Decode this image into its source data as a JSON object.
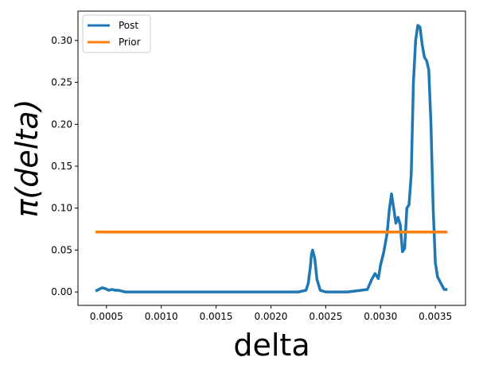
{
  "chart_data": {
    "type": "line",
    "xlabel": "delta",
    "ylabel": "π(delta)",
    "xlim": [
      0.00024,
      0.003775
    ],
    "ylim": [
      -0.016,
      0.335
    ],
    "x_ticks": [
      0.0005,
      0.001,
      0.0015,
      0.002,
      0.0025,
      0.003,
      0.0035
    ],
    "x_tick_labels": [
      "0.0005",
      "0.0010",
      "0.0015",
      "0.0020",
      "0.0025",
      "0.0030",
      "0.0035"
    ],
    "y_ticks": [
      0.0,
      0.05,
      0.1,
      0.15,
      0.2,
      0.25,
      0.3
    ],
    "y_tick_labels": [
      "0.00",
      "0.05",
      "0.10",
      "0.15",
      "0.20",
      "0.25",
      "0.30"
    ],
    "grid": false,
    "legend_position": "top-left",
    "series": [
      {
        "name": "Post",
        "color": "#1f77b4",
        "x": [
          0.0004,
          0.00043,
          0.00046,
          0.00049,
          0.00052,
          0.00055,
          0.00058,
          0.00061,
          0.00064,
          0.00067,
          0.0007,
          0.00075,
          0.001,
          0.0015,
          0.002,
          0.00225,
          0.00232,
          0.00234,
          0.00236,
          0.00237,
          0.00238,
          0.0024,
          0.00242,
          0.00245,
          0.0025,
          0.0027,
          0.00288,
          0.00292,
          0.00295,
          0.00298,
          0.003,
          0.00303,
          0.00306,
          0.00308,
          0.0031,
          0.00312,
          0.00314,
          0.00316,
          0.00318,
          0.0032,
          0.00322,
          0.00324,
          0.00326,
          0.00328,
          0.0033,
          0.00332,
          0.00334,
          0.00336,
          0.00338,
          0.0034,
          0.00342,
          0.00344,
          0.00346,
          0.00348,
          0.0035,
          0.00352,
          0.00354,
          0.00356,
          0.00358,
          0.00361
        ],
        "values": [
          0.001,
          0.003,
          0.005,
          0.004,
          0.002,
          0.003,
          0.002,
          0.002,
          0.001,
          0.0,
          0.0,
          0.0,
          0.0,
          0.0,
          0.0,
          0.0,
          0.002,
          0.01,
          0.03,
          0.045,
          0.05,
          0.04,
          0.015,
          0.002,
          0.0,
          0.0,
          0.003,
          0.015,
          0.022,
          0.016,
          0.032,
          0.048,
          0.07,
          0.098,
          0.117,
          0.1,
          0.082,
          0.089,
          0.08,
          0.048,
          0.052,
          0.1,
          0.104,
          0.14,
          0.25,
          0.3,
          0.318,
          0.316,
          0.295,
          0.28,
          0.276,
          0.265,
          0.2,
          0.1,
          0.035,
          0.018,
          0.013,
          0.008,
          0.003,
          0.003
        ]
      },
      {
        "name": "Prior",
        "color": "#ff7f0e",
        "x": [
          0.0004,
          0.00361
        ],
        "values": [
          0.0715,
          0.0715
        ]
      }
    ]
  }
}
